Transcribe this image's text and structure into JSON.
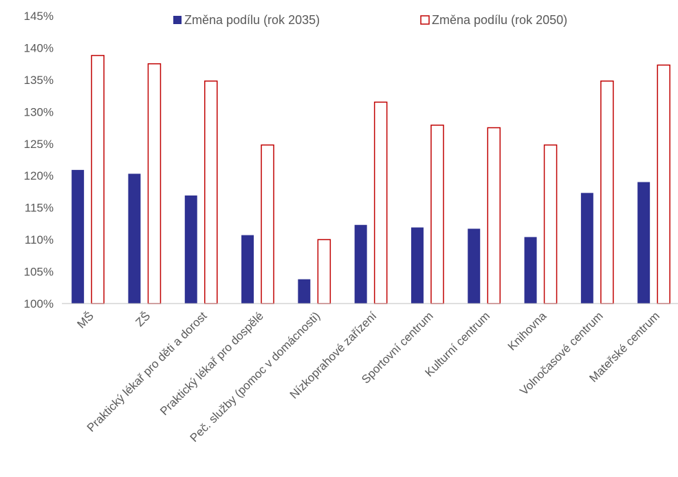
{
  "chart_data": {
    "type": "bar",
    "categories": [
      "MŠ",
      "ZŠ",
      "Praktický lékař pro děti a dorost",
      "Praktický lékař pro dospělé",
      "Peč. služby (pomoc v domácnosti)",
      "Nízkoprahové zařízení",
      "Sportovní centrum",
      "Kulturní centrum",
      "Knihovna",
      "Volnočasové centrum",
      "Mateřské centrum"
    ],
    "series": [
      {
        "name": "Změna podílu (rok 2035)",
        "style": "filled",
        "color": "#2E3192",
        "values": [
          120.9,
          120.3,
          116.9,
          110.7,
          103.8,
          112.3,
          111.9,
          111.7,
          110.4,
          117.3,
          119.0
        ]
      },
      {
        "name": "Změna podílu (rok 2050)",
        "style": "outline",
        "color": "#C00000",
        "values": [
          138.8,
          137.5,
          134.8,
          124.8,
          110.0,
          131.5,
          127.9,
          127.5,
          124.8,
          134.8,
          137.3
        ]
      }
    ],
    "y_tick_labels": [
      "100%",
      "105%",
      "110%",
      "115%",
      "120%",
      "125%",
      "130%",
      "135%",
      "140%",
      "145%"
    ],
    "ylim": [
      100,
      145
    ],
    "y_unit": "%",
    "grid": false,
    "legend_position": "top"
  },
  "colors": {
    "axis": "#BFBFBF",
    "text": "#595959"
  }
}
